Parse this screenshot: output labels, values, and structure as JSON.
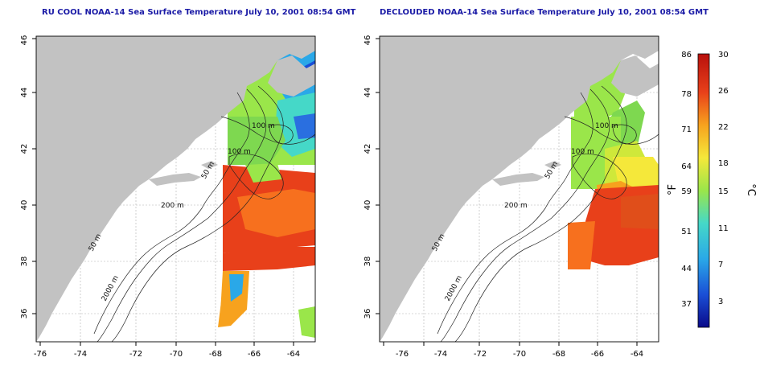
{
  "left_panel": {
    "title": "RU COOL NOAA-14 Sea Surface Temperature July 10, 2001 08:54 GMT"
  },
  "right_panel": {
    "title": "DECLOUDED NOAA-14 Sea Surface Temperature July 10, 2001 08:54 GMT"
  },
  "axes": {
    "lat_ticks": [
      "36",
      "38",
      "40",
      "42",
      "44",
      "46"
    ],
    "lon_ticks": [
      "-76",
      "-74",
      "-72",
      "-70",
      "-68",
      "-66",
      "-64"
    ]
  },
  "contour_labels": {
    "left": [
      "100 m",
      "100 m",
      "50 m",
      "200 m",
      "50 m",
      "2000 m"
    ],
    "right": [
      "100 m",
      "100 m",
      "50 m",
      "200 m",
      "50 m",
      "2000 m"
    ]
  },
  "colorbar": {
    "f_ticks": [
      "86",
      "78",
      "71",
      "64",
      "59",
      "51",
      "44",
      "37"
    ],
    "c_ticks": [
      "30",
      "26",
      "22",
      "18",
      "15",
      "11",
      "7",
      "3"
    ],
    "f_unit": "°F",
    "c_unit": "°C",
    "colors": [
      "#0a0a8a",
      "#1a4fd6",
      "#2aa8e8",
      "#45d8c8",
      "#9ae64a",
      "#f5e83a",
      "#f7a21e",
      "#e8401a",
      "#b8100c"
    ]
  }
}
